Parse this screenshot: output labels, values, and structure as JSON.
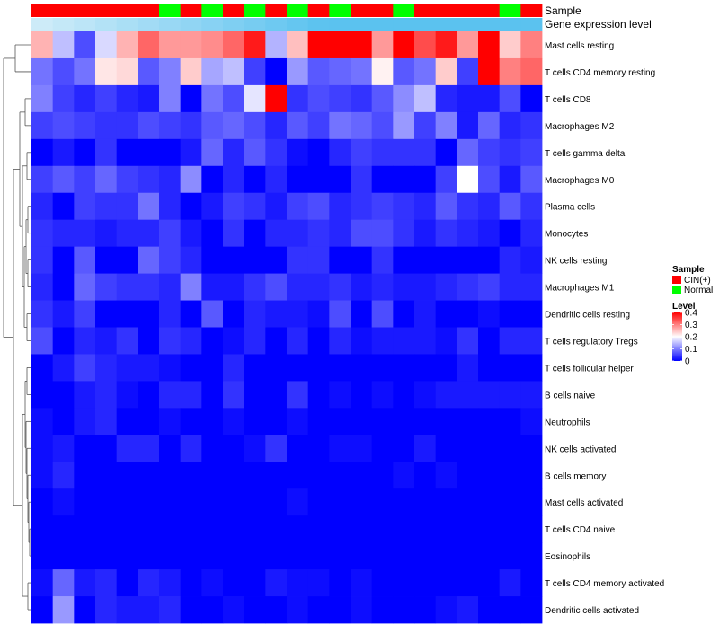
{
  "chart_data": {
    "type": "heatmap",
    "title": "",
    "annotation_tracks": [
      {
        "name": "Sample"
      },
      {
        "name": "Gene expression level"
      }
    ],
    "sample_groups": [
      "CIN(+)",
      "CIN(+)",
      "CIN(+)",
      "CIN(+)",
      "CIN(+)",
      "CIN(+)",
      "Normal",
      "CIN(+)",
      "Normal",
      "CIN(+)",
      "Normal",
      "CIN(+)",
      "Normal",
      "CIN(+)",
      "Normal",
      "CIN(+)",
      "CIN(+)",
      "Normal",
      "CIN(+)",
      "CIN(+)",
      "CIN(+)",
      "CIN(+)",
      "Normal",
      "CIN(+)"
    ],
    "rows": [
      "Mast cells resting",
      "T cells CD4 memory resting",
      "T cells CD8",
      "Macrophages M2",
      "T cells gamma delta",
      "Macrophages M0",
      "Plasma cells",
      "Monocytes",
      "NK cells resting",
      "Macrophages M1",
      "Dendritic cells resting",
      "T cells regulatory  Tregs",
      "T cells follicular helper",
      "B cells naive",
      "Neutrophils",
      "NK cells activated",
      "B cells memory",
      "Mast cells activated",
      "T cells CD4 naive",
      "Eosinophils",
      "T cells CD4 memory activated",
      "Dendritic cells activated"
    ],
    "values": [
      [
        0.26,
        0.15,
        0.06,
        0.17,
        0.26,
        0.32,
        0.28,
        0.28,
        0.29,
        0.32,
        0.38,
        0.14,
        0.25,
        0.4,
        0.4,
        0.4,
        0.28,
        0.4,
        0.34,
        0.38,
        0.28,
        0.4,
        0.24,
        0.3
      ],
      [
        0.09,
        0.06,
        0.09,
        0.22,
        0.23,
        0.07,
        0.1,
        0.24,
        0.13,
        0.15,
        0.05,
        0.0,
        0.12,
        0.07,
        0.08,
        0.09,
        0.21,
        0.07,
        0.09,
        0.24,
        0.05,
        0.4,
        0.3,
        0.32
      ],
      [
        0.1,
        0.05,
        0.03,
        0.05,
        0.03,
        0.02,
        0.1,
        0.0,
        0.09,
        0.06,
        0.18,
        0.4,
        0.04,
        0.06,
        0.05,
        0.04,
        0.07,
        0.11,
        0.15,
        0.03,
        0.02,
        0.02,
        0.06,
        0.0
      ],
      [
        0.05,
        0.06,
        0.05,
        0.04,
        0.04,
        0.06,
        0.05,
        0.04,
        0.07,
        0.08,
        0.06,
        0.03,
        0.07,
        0.05,
        0.09,
        0.08,
        0.06,
        0.12,
        0.05,
        0.1,
        0.02,
        0.08,
        0.03,
        0.04
      ],
      [
        0.0,
        0.02,
        0.0,
        0.04,
        0.0,
        0.0,
        0.0,
        0.02,
        0.08,
        0.03,
        0.07,
        0.04,
        0.01,
        0.0,
        0.03,
        0.05,
        0.04,
        0.04,
        0.04,
        0.0,
        0.08,
        0.05,
        0.04,
        0.05
      ],
      [
        0.05,
        0.07,
        0.05,
        0.08,
        0.05,
        0.04,
        0.03,
        0.11,
        0.0,
        0.03,
        0.0,
        0.03,
        0.0,
        0.0,
        0.0,
        0.04,
        0.0,
        0.0,
        0.0,
        0.05,
        0.2,
        0.06,
        0.02,
        0.07
      ],
      [
        0.03,
        0.0,
        0.05,
        0.04,
        0.04,
        0.09,
        0.03,
        0.0,
        0.02,
        0.05,
        0.04,
        0.02,
        0.05,
        0.06,
        0.03,
        0.04,
        0.05,
        0.04,
        0.03,
        0.07,
        0.04,
        0.03,
        0.07,
        0.04
      ],
      [
        0.04,
        0.03,
        0.03,
        0.02,
        0.03,
        0.03,
        0.05,
        0.02,
        0.0,
        0.04,
        0.0,
        0.03,
        0.03,
        0.04,
        0.03,
        0.06,
        0.06,
        0.04,
        0.02,
        0.04,
        0.03,
        0.02,
        0.0,
        0.03
      ],
      [
        0.04,
        0.0,
        0.07,
        0.0,
        0.0,
        0.08,
        0.05,
        0.03,
        0.0,
        0.0,
        0.0,
        0.0,
        0.04,
        0.04,
        0.0,
        0.0,
        0.04,
        0.0,
        0.0,
        0.0,
        0.0,
        0.0,
        0.03,
        0.02
      ],
      [
        0.03,
        0.0,
        0.08,
        0.05,
        0.04,
        0.04,
        0.03,
        0.1,
        0.02,
        0.02,
        0.04,
        0.06,
        0.03,
        0.03,
        0.04,
        0.02,
        0.03,
        0.02,
        0.02,
        0.03,
        0.04,
        0.05,
        0.03,
        0.03
      ],
      [
        0.04,
        0.02,
        0.05,
        0.0,
        0.0,
        0.0,
        0.03,
        0.0,
        0.07,
        0.0,
        0.03,
        0.02,
        0.02,
        0.01,
        0.06,
        0.0,
        0.06,
        0.0,
        0.02,
        0.0,
        0.0,
        0.01,
        0.0,
        0.0
      ],
      [
        0.06,
        0.0,
        0.03,
        0.02,
        0.04,
        0.0,
        0.04,
        0.03,
        0.0,
        0.01,
        0.03,
        0.0,
        0.03,
        0.0,
        0.03,
        0.01,
        0.02,
        0.02,
        0.02,
        0.01,
        0.04,
        0.0,
        0.03,
        0.03
      ],
      [
        0.0,
        0.02,
        0.05,
        0.03,
        0.02,
        0.02,
        0.01,
        0.0,
        0.0,
        0.03,
        0.0,
        0.0,
        0.0,
        0.0,
        0.0,
        0.0,
        0.0,
        0.0,
        0.0,
        0.0,
        0.02,
        0.0,
        0.0,
        0.0
      ],
      [
        0.0,
        0.0,
        0.02,
        0.03,
        0.01,
        0.0,
        0.03,
        0.03,
        0.0,
        0.04,
        0.0,
        0.0,
        0.04,
        0.0,
        0.01,
        0.0,
        0.01,
        0.0,
        0.01,
        0.02,
        0.02,
        0.02,
        0.02,
        0.02
      ],
      [
        0.01,
        0.0,
        0.02,
        0.03,
        0.0,
        0.0,
        0.01,
        0.0,
        0.0,
        0.01,
        0.0,
        0.0,
        0.01,
        0.0,
        0.0,
        0.0,
        0.0,
        0.0,
        0.0,
        0.0,
        0.0,
        0.0,
        0.0,
        0.01
      ],
      [
        0.01,
        0.02,
        0.0,
        0.0,
        0.03,
        0.03,
        0.0,
        0.03,
        0.0,
        0.0,
        0.01,
        0.04,
        0.0,
        0.0,
        0.01,
        0.01,
        0.0,
        0.0,
        0.02,
        0.0,
        0.0,
        0.0,
        0.0,
        0.0
      ],
      [
        0.01,
        0.03,
        0.0,
        0.0,
        0.0,
        0.0,
        0.0,
        0.0,
        0.0,
        0.0,
        0.0,
        0.0,
        0.0,
        0.0,
        0.0,
        0.0,
        0.0,
        0.01,
        0.0,
        0.01,
        0.0,
        0.0,
        0.0,
        0.0
      ],
      [
        0.0,
        0.01,
        0.0,
        0.0,
        0.0,
        0.0,
        0.0,
        0.0,
        0.0,
        0.0,
        0.0,
        0.0,
        0.01,
        0.0,
        0.0,
        0.0,
        0.0,
        0.0,
        0.0,
        0.0,
        0.0,
        0.0,
        0.0,
        0.0
      ],
      [
        0.0,
        0.0,
        0.0,
        0.0,
        0.0,
        0.0,
        0.0,
        0.0,
        0.0,
        0.0,
        0.0,
        0.0,
        0.0,
        0.0,
        0.0,
        0.0,
        0.0,
        0.0,
        0.0,
        0.0,
        0.0,
        0.0,
        0.0,
        0.0
      ],
      [
        0.0,
        0.0,
        0.0,
        0.0,
        0.0,
        0.0,
        0.0,
        0.0,
        0.0,
        0.0,
        0.0,
        0.0,
        0.0,
        0.0,
        0.0,
        0.0,
        0.0,
        0.0,
        0.0,
        0.0,
        0.0,
        0.0,
        0.0,
        0.0
      ],
      [
        0.01,
        0.08,
        0.02,
        0.03,
        0.0,
        0.03,
        0.02,
        0.0,
        0.01,
        0.0,
        0.0,
        0.02,
        0.01,
        0.01,
        0.0,
        0.01,
        0.0,
        0.0,
        0.0,
        0.0,
        0.0,
        0.0,
        0.02,
        0.0
      ],
      [
        0.0,
        0.12,
        0.0,
        0.03,
        0.02,
        0.02,
        0.03,
        0.0,
        0.0,
        0.01,
        0.0,
        0.0,
        0.01,
        0.0,
        0.0,
        0.01,
        0.0,
        0.0,
        0.0,
        0.01,
        0.02,
        0.0,
        0.0,
        0.0
      ]
    ],
    "color_scale": {
      "low": "#0000ff",
      "mid": "#ffffff",
      "high": "#ff0000",
      "min": 0,
      "midpoint": 0.2,
      "max": 0.4
    },
    "legend": {
      "position": "right",
      "sample_title": "Sample",
      "sample_entries": [
        {
          "label": "CIN(+)",
          "color": "#ff0000"
        },
        {
          "label": "Normal",
          "color": "#00ff00"
        }
      ],
      "level_title": "Level",
      "level_ticks": [
        0.4,
        0.3,
        0.2,
        0.1,
        0
      ],
      "level_tick_labels": [
        "0.4",
        "0.3",
        "0.2",
        "0.1",
        "0"
      ]
    },
    "row_dendrogram": "left",
    "expression_track_color": "#5bc2ef",
    "expression_track_light_color": "#cdebf8"
  }
}
